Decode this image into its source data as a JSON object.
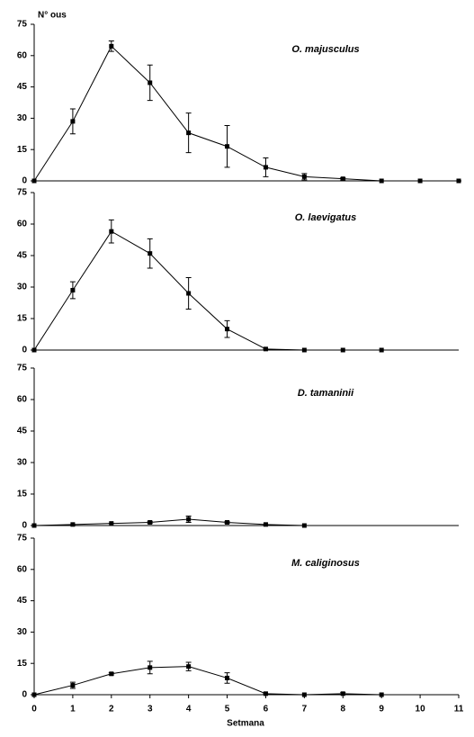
{
  "chart_data": [
    {
      "type": "line",
      "title": "O. majusculus",
      "y_label": "N° ous",
      "x": [
        0,
        1,
        2,
        3,
        4,
        5,
        6,
        7,
        8,
        9,
        10,
        11
      ],
      "series": [
        {
          "color": "#000000",
          "values": [
            0,
            28.5,
            64.5,
            47,
            23,
            16.5,
            6.5,
            2,
            1,
            0,
            0,
            0
          ],
          "errors": [
            0,
            6,
            2.5,
            8.5,
            9.5,
            10,
            4.5,
            1.5,
            0.5,
            0,
            0,
            0
          ]
        }
      ],
      "xlim": [
        0,
        11
      ],
      "ylim": [
        0,
        75
      ],
      "yticks": [
        0,
        15,
        30,
        45,
        60,
        75
      ]
    },
    {
      "type": "line",
      "title": "O. laevigatus",
      "x": [
        0,
        1,
        2,
        3,
        4,
        5,
        6,
        7,
        8,
        9
      ],
      "series": [
        {
          "color": "#000000",
          "values": [
            0,
            28.5,
            56.5,
            46,
            27,
            10,
            0.5,
            0,
            0,
            0
          ],
          "errors": [
            0,
            4,
            5.5,
            7,
            7.5,
            4,
            0,
            0,
            0,
            0
          ]
        }
      ],
      "xlim": [
        0,
        11
      ],
      "ylim": [
        0,
        75
      ],
      "yticks": [
        0,
        15,
        30,
        45,
        60,
        75
      ]
    },
    {
      "type": "line",
      "title": "D. tamaninii",
      "x": [
        0,
        1,
        2,
        3,
        4,
        5,
        6,
        7
      ],
      "series": [
        {
          "color": "#000000",
          "values": [
            0,
            0.5,
            1,
            1.5,
            3,
            1.5,
            0.5,
            0
          ],
          "errors": [
            0,
            0,
            0,
            0.5,
            1.5,
            0.5,
            0,
            0
          ]
        }
      ],
      "xlim": [
        0,
        11
      ],
      "ylim": [
        0,
        75
      ],
      "yticks": [
        0,
        15,
        30,
        45,
        60,
        75
      ]
    },
    {
      "type": "line",
      "title": "M. caliginosus",
      "x_label": "Setmana",
      "x": [
        0,
        1,
        2,
        3,
        4,
        5,
        6,
        7,
        8,
        9
      ],
      "series": [
        {
          "color": "#000000",
          "values": [
            0,
            4.5,
            10,
            13,
            13.5,
            8,
            0.5,
            0,
            0.5,
            0
          ],
          "errors": [
            0,
            1.5,
            0.5,
            3,
            2,
            2.5,
            0,
            0,
            0.5,
            0
          ]
        }
      ],
      "xlim": [
        0,
        11
      ],
      "ylim": [
        0,
        75
      ],
      "yticks": [
        0,
        15,
        30,
        45,
        60,
        75
      ],
      "xticks": [
        0,
        1,
        2,
        3,
        4,
        5,
        6,
        7,
        8,
        9,
        10,
        11
      ]
    }
  ]
}
